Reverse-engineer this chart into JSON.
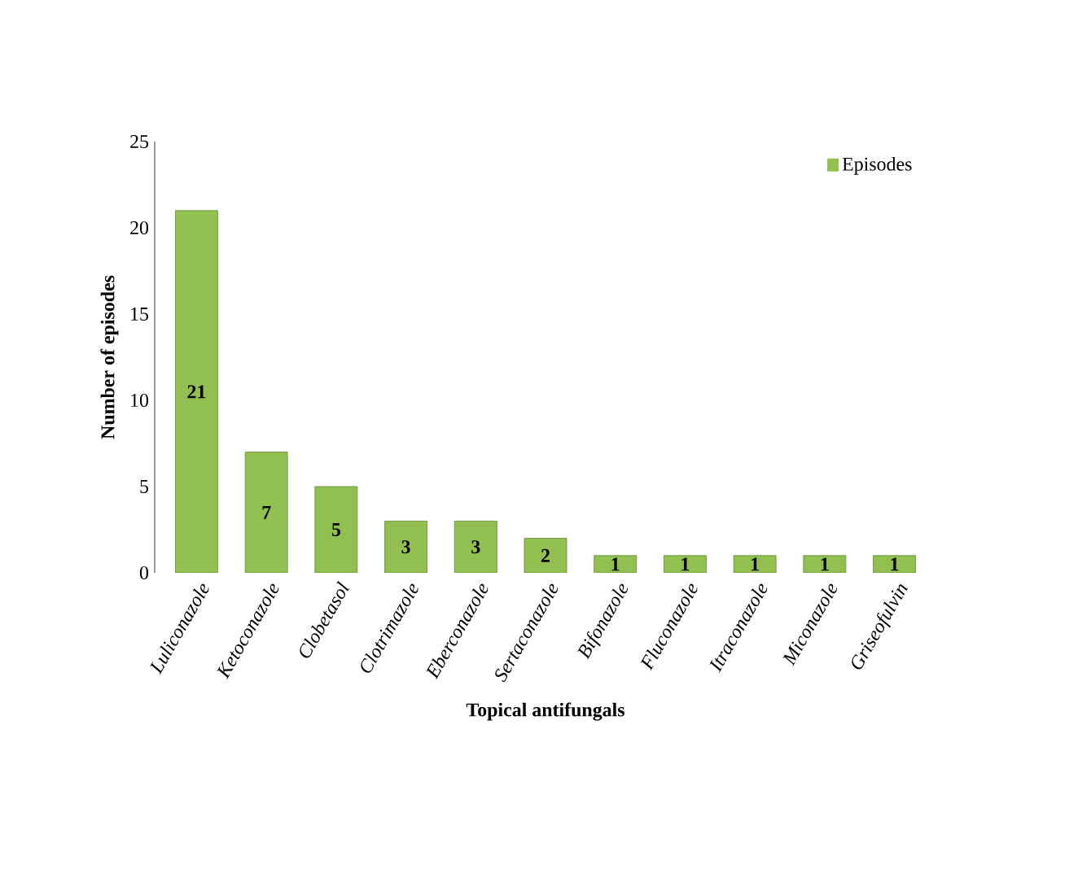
{
  "chart_data": {
    "type": "bar",
    "xlabel": "Topical antifungals",
    "ylabel": "Number  of episodes",
    "categories": [
      "Luliconazole",
      "Ketoconazole",
      "Clobetasol",
      "Clotrimazole",
      "Eberconazole",
      "Sertaconazole",
      "Bifonazole",
      "Fluconazole",
      "Itraconazole",
      "Miconazole",
      "Griseofulvin"
    ],
    "series": [
      {
        "name": "Episodes",
        "color": "#92c050",
        "values": [
          21,
          7,
          5,
          3,
          3,
          2,
          1,
          1,
          1,
          1,
          1
        ]
      }
    ],
    "ylim": [
      0,
      25
    ],
    "yticks": [
      0,
      5,
      10,
      15,
      20,
      25
    ],
    "data_labels": true,
    "legend": "top right",
    "grid": false
  }
}
